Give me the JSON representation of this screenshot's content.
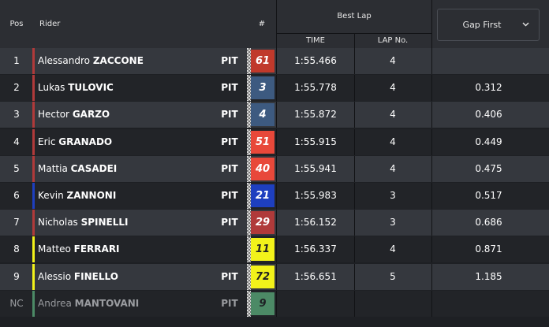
{
  "header": {
    "pos": "Pos",
    "rider": "Rider",
    "number": "#",
    "best_lap": "Best Lap",
    "time": "TIME",
    "lap_no": "LAP No.",
    "gap_select": "Gap First"
  },
  "rows": [
    {
      "pos": "1",
      "first": "Alessandro",
      "last": "ZACCONE",
      "pit": "PIT",
      "num": "61",
      "num_bg": "#c0392b",
      "num_fg": "#ffffff",
      "stripe": "#b03a3a",
      "time": "1:55.466",
      "lap": "4",
      "gap": ""
    },
    {
      "pos": "2",
      "first": "Lukas",
      "last": "TULOVIC",
      "pit": "PIT",
      "num": "3",
      "num_bg": "#3d5a80",
      "num_fg": "#ffffff",
      "stripe": "#b03a3a",
      "time": "1:55.778",
      "lap": "4",
      "gap": "0.312"
    },
    {
      "pos": "3",
      "first": "Hector",
      "last": "GARZO",
      "pit": "PIT",
      "num": "4",
      "num_bg": "#3d5a80",
      "num_fg": "#ffffff",
      "stripe": "#b03a3a",
      "time": "1:55.872",
      "lap": "4",
      "gap": "0.406"
    },
    {
      "pos": "4",
      "first": "Eric",
      "last": "GRANADO",
      "pit": "PIT",
      "num": "51",
      "num_bg": "#e8483a",
      "num_fg": "#ffffff",
      "stripe": "#b03a3a",
      "time": "1:55.915",
      "lap": "4",
      "gap": "0.449"
    },
    {
      "pos": "5",
      "first": "Mattia",
      "last": "CASADEI",
      "pit": "PIT",
      "num": "40",
      "num_bg": "#e8483a",
      "num_fg": "#ffffff",
      "stripe": "#b03a3a",
      "time": "1:55.941",
      "lap": "4",
      "gap": "0.475"
    },
    {
      "pos": "6",
      "first": "Kevin",
      "last": "ZANNONI",
      "pit": "PIT",
      "num": "21",
      "num_bg": "#1e3fbf",
      "num_fg": "#ffffff",
      "stripe": "#1e3fbf",
      "time": "1:55.983",
      "lap": "3",
      "gap": "0.517"
    },
    {
      "pos": "7",
      "first": "Nicholas",
      "last": "SPINELLI",
      "pit": "PIT",
      "num": "29",
      "num_bg": "#b03a3a",
      "num_fg": "#ffffff",
      "stripe": "#b03a3a",
      "time": "1:56.152",
      "lap": "3",
      "gap": "0.686"
    },
    {
      "pos": "8",
      "first": "Matteo",
      "last": "FERRARI",
      "pit": "",
      "num": "11",
      "num_bg": "#f2f21a",
      "num_fg": "#222222",
      "stripe": "#f2f21a",
      "time": "1:56.337",
      "lap": "4",
      "gap": "0.871"
    },
    {
      "pos": "9",
      "first": "Alessio",
      "last": "FINELLO",
      "pit": "PIT",
      "num": "72",
      "num_bg": "#f2f21a",
      "num_fg": "#222222",
      "stripe": "#f2f21a",
      "time": "1:56.651",
      "lap": "5",
      "gap": "1.185"
    },
    {
      "pos": "NC",
      "first": "Andrea",
      "last": "MANTOVANI",
      "pit": "PIT",
      "num": "9",
      "num_bg": "#4c8a66",
      "num_fg": "#1e2024",
      "stripe": "#4c8a66",
      "time": "",
      "lap": "",
      "gap": "",
      "dim": true
    }
  ]
}
